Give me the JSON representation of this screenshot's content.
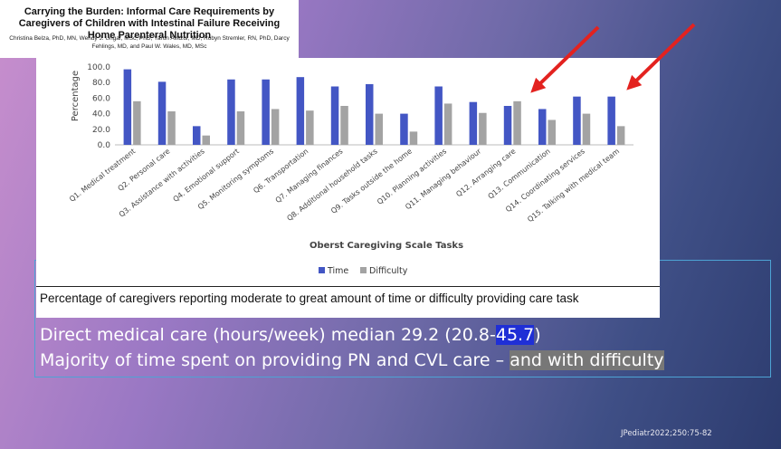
{
  "paper": {
    "title": "Carrying the Burden: Informal Care Requirements by Caregivers of Children with Intestinal Failure Receiving Home Parenteral Nutrition",
    "authors": "Christina Belza, PhD, MN, Wendy J. Ungar, MSc, PhD, Yaron Avitzur, MD, Robyn Stremler, RN, PhD, Darcy Fehlings, MD, and Paul W. Wales, MD, MSc"
  },
  "chart_data": {
    "type": "bar",
    "ylabel": "Percentage",
    "xlabel": "Oberst Caregiving Scale Tasks",
    "ylim": [
      0,
      100
    ],
    "yticks": [
      "100.0",
      "80.0",
      "60.0",
      "40.0",
      "20.0",
      "0.0"
    ],
    "categories": [
      "Q1. Medical treatment",
      "Q2. Personal care",
      "Q3. Assistance with activities",
      "Q4. Emotional support",
      "Q5. Monitoring symptoms",
      "Q6. Transportation",
      "Q7. Managing finances",
      "Q8. Additional household tasks",
      "Q9. Tasks outside the home",
      "Q10. Planning activities",
      "Q11. Managing behaviour",
      "Q12. Arranging care",
      "Q13. Communication",
      "Q14. Coordinating services",
      "Q15. Talking with medical team"
    ],
    "series": [
      {
        "name": "Time",
        "color": "#4356c4",
        "values": [
          97,
          81,
          24,
          84,
          84,
          87,
          75,
          78,
          40,
          75,
          55,
          50,
          46,
          62,
          62
        ]
      },
      {
        "name": "Difficulty",
        "color": "#a3a3a3",
        "values": [
          56,
          43,
          12,
          43,
          46,
          44,
          50,
          40,
          17,
          53,
          41,
          56,
          32,
          40,
          24
        ]
      }
    ],
    "legend": "bottom-center",
    "grid": false
  },
  "caption": "Percentage of caregivers reporting moderate to great amount of time or difficulty providing care task",
  "bullets": {
    "line1_prefix": "Direct medical care (hours/week) median 29.2 (20.8-",
    "line1_highlight": "45.7",
    "line1_suffix": ")",
    "line2_prefix": "Majority of time spent on providing PN and CVL care – ",
    "line2_highlight": "and with difficulty"
  },
  "citation": "JPediatr2022;250:75-82",
  "colors": {
    "arrow": "#e3221f",
    "frame": "#4da3d4"
  }
}
